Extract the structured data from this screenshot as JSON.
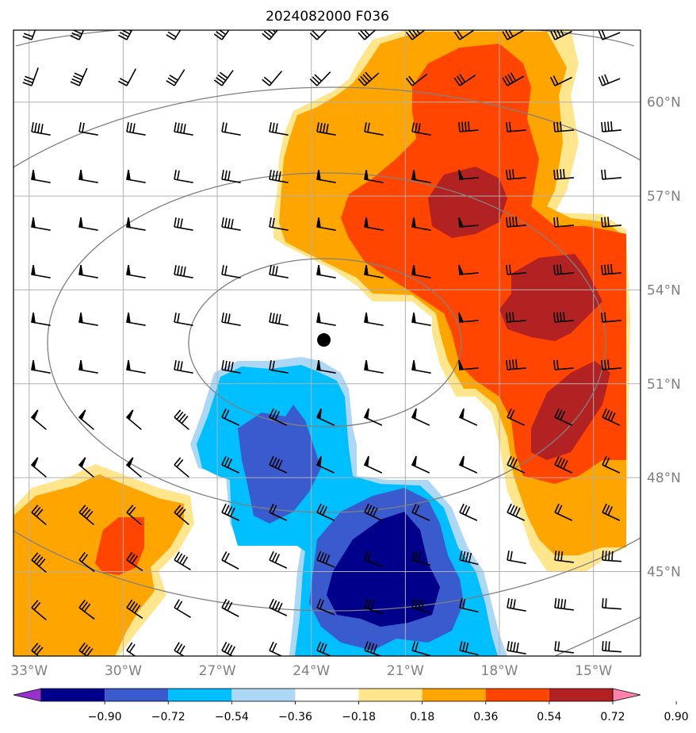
{
  "title": "2024082000 F036",
  "map": {
    "lon_range": [
      -33.5,
      -13.5
    ],
    "lat_range": [
      42.3,
      62.3
    ],
    "lon_ticks": [
      {
        "lon": -33,
        "label": "33°W"
      },
      {
        "lon": -30,
        "label": "30°W"
      },
      {
        "lon": -27,
        "label": "27°W"
      },
      {
        "lon": -24,
        "label": "24°W"
      },
      {
        "lon": -21,
        "label": "21°W"
      },
      {
        "lon": -18,
        "label": "18°W"
      },
      {
        "lon": -15,
        "label": "15°W"
      }
    ],
    "lat_ticks": [
      {
        "lat": 60,
        "label": "60°N"
      },
      {
        "lat": 57,
        "label": "57°N"
      },
      {
        "lat": 54,
        "label": "54°N"
      },
      {
        "lat": 51,
        "label": "51°N"
      },
      {
        "lat": 48,
        "label": "48°N"
      },
      {
        "lat": 45,
        "label": "45°N"
      }
    ],
    "grid": true,
    "center_marker": {
      "lon": -23.6,
      "lat": 52.4
    },
    "gridline_color": "#b0b0b0",
    "contour_color": "#808080"
  },
  "colorbar": {
    "ticks": [
      "−0.90",
      "−0.72",
      "−0.54",
      "−0.36",
      "−0.18",
      "0.18",
      "0.36",
      "0.54",
      "0.72",
      "0.90"
    ],
    "colors": [
      "#9932cc",
      "#00008b",
      "#3a5bcd",
      "#00bfff",
      "#add8f5",
      "#ffffff",
      "#ffe68c",
      "#ffa500",
      "#ff4500",
      "#b22222",
      "#ff82ab"
    ],
    "extend": "both"
  },
  "shading_colors": {
    "pos1": "#ffe68c",
    "pos2": "#ffa500",
    "pos3": "#ff4500",
    "pos4": "#b22222",
    "neg1": "#add8f5",
    "neg2": "#00bfff",
    "neg3": "#3a5bcd",
    "neg4": "#00008b"
  }
}
